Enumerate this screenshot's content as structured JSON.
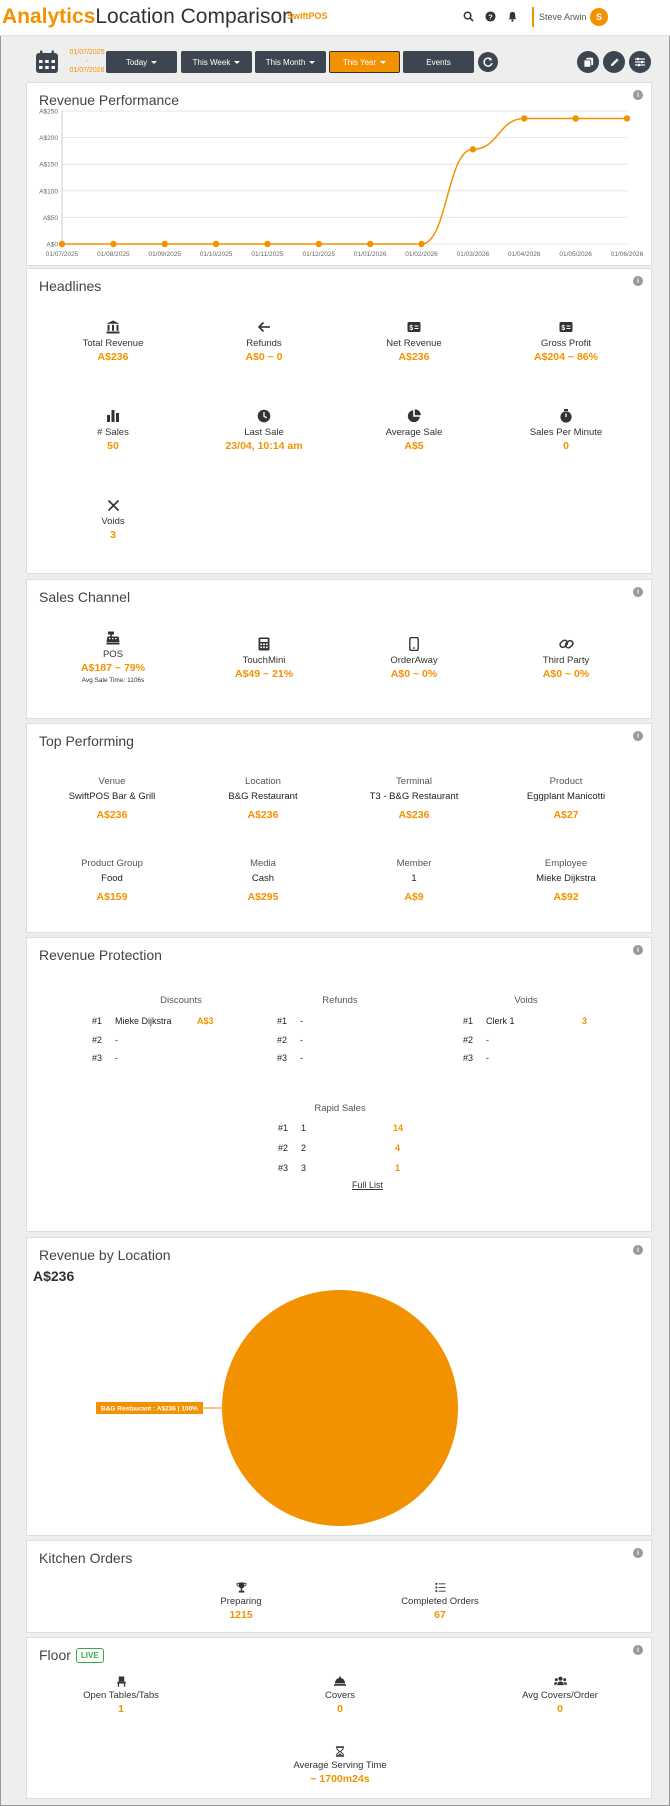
{
  "header": {
    "brand_accent": "Analytics",
    "brand_title": "Location Comparison",
    "tenant": "SwiftPOS",
    "user_name": "Steve Arwin",
    "avatar_initial": "S"
  },
  "filters": {
    "date_from": "01/07/2025",
    "date_sep": "-",
    "date_to": "01/07/2026",
    "today": "Today",
    "this_week": "This Week",
    "this_month": "This Month",
    "this_year": "This Year",
    "events": "Events"
  },
  "revenue_performance": {
    "title": "Revenue Performance",
    "chart_data": {
      "type": "line",
      "x": [
        "01/07/2025",
        "01/08/2025",
        "01/09/2025",
        "01/10/2025",
        "01/11/2025",
        "01/12/2025",
        "01/01/2026",
        "01/02/2026",
        "01/03/2026",
        "01/04/2026",
        "01/05/2026",
        "01/06/2026"
      ],
      "values": [
        0,
        0,
        0,
        0,
        0,
        0,
        0,
        0,
        178,
        236,
        236,
        236
      ],
      "y_ticks": [
        "A$0",
        "A$50",
        "A$100",
        "A$150",
        "A$200",
        "A$250"
      ],
      "ylim": [
        0,
        250
      ],
      "grid": true,
      "color": "#f39200"
    }
  },
  "headlines": {
    "title": "Headlines",
    "items": [
      {
        "label": "Total Revenue",
        "value": "A$236",
        "icon": "bank-icon"
      },
      {
        "label": "Refunds",
        "value": "A$0 ~ 0",
        "icon": "arrow-left-icon"
      },
      {
        "label": "Net Revenue",
        "value": "A$236",
        "icon": "money-icon"
      },
      {
        "label": "Gross Profit",
        "value": "A$204 ~ 86%",
        "icon": "money-icon"
      },
      {
        "label": "# Sales",
        "value": "50",
        "icon": "bar-chart-icon"
      },
      {
        "label": "Last Sale",
        "value": "23/04, 10:14 am",
        "icon": "clock-icon"
      },
      {
        "label": "Average Sale",
        "value": "A$5",
        "icon": "pie-icon"
      },
      {
        "label": "Sales Per Minute",
        "value": "0",
        "icon": "stopwatch-icon"
      },
      {
        "label": "Voids",
        "value": "3",
        "icon": "close-icon"
      }
    ]
  },
  "sales_channel": {
    "title": "Sales Channel",
    "items": [
      {
        "label": "POS",
        "value": "A$187 ~ 79%",
        "sub": "Avg Sale Time: 1106s",
        "icon": "cash-register-icon"
      },
      {
        "label": "TouchMini",
        "value": "A$49 ~ 21%",
        "sub": "",
        "icon": "calculator-icon"
      },
      {
        "label": "OrderAway",
        "value": "A$0 ~ 0%",
        "sub": "",
        "icon": "phone-icon"
      },
      {
        "label": "Third Party",
        "value": "A$0 ~ 0%",
        "sub": "",
        "icon": "link-icon"
      }
    ]
  },
  "top_performing": {
    "title": "Top Performing",
    "items": [
      {
        "label": "Venue",
        "name": "SwiftPOS Bar & Grill",
        "value": "A$236"
      },
      {
        "label": "Location",
        "name": "B&G Restaurant",
        "value": "A$236"
      },
      {
        "label": "Terminal",
        "name": "T3 - B&G Restaurant",
        "value": "A$236"
      },
      {
        "label": "Product",
        "name": "Eggplant Manicotti",
        "value": "A$27"
      },
      {
        "label": "Product Group",
        "name": "Food",
        "value": "A$159"
      },
      {
        "label": "Media",
        "name": "Cash",
        "value": "A$295"
      },
      {
        "label": "Member",
        "name": "1",
        "value": "A$9"
      },
      {
        "label": "Employee",
        "name": "Mieke Dijkstra",
        "value": "A$92"
      }
    ]
  },
  "revenue_protection": {
    "title": "Revenue Protection",
    "discounts": {
      "label": "Discounts",
      "rows": [
        {
          "rank": "#1",
          "name": "Mieke Dijkstra",
          "amount": "A$3"
        },
        {
          "rank": "#2",
          "name": "-",
          "amount": ""
        },
        {
          "rank": "#3",
          "name": "-",
          "amount": ""
        }
      ]
    },
    "refunds": {
      "label": "Refunds",
      "rows": [
        {
          "rank": "#1",
          "name": "-",
          "amount": ""
        },
        {
          "rank": "#2",
          "name": "-",
          "amount": ""
        },
        {
          "rank": "#3",
          "name": "-",
          "amount": ""
        }
      ]
    },
    "voids": {
      "label": "Voids",
      "rows": [
        {
          "rank": "#1",
          "name": "Clerk 1",
          "amount": "3"
        },
        {
          "rank": "#2",
          "name": "-",
          "amount": ""
        },
        {
          "rank": "#3",
          "name": "-",
          "amount": ""
        }
      ]
    },
    "rapid_sales": {
      "label": "Rapid Sales",
      "rows": [
        {
          "rank": "#1",
          "name": "1",
          "amount": "14"
        },
        {
          "rank": "#2",
          "name": "2",
          "amount": "4"
        },
        {
          "rank": "#3",
          "name": "3",
          "amount": "1"
        }
      ]
    },
    "full_list": "Full List"
  },
  "revenue_by_location": {
    "title": "Revenue by Location",
    "total": "A$236",
    "chart_data": {
      "type": "pie",
      "slices": [
        {
          "name": "B&G Restaurant",
          "value": 236,
          "percent": 100,
          "label": "B&G Restaurant : A$236 | 100%"
        }
      ],
      "color": "#f39200"
    }
  },
  "kitchen_orders": {
    "title": "Kitchen Orders",
    "items": [
      {
        "label": "Preparing",
        "value": "1215",
        "icon": "trophy-icon"
      },
      {
        "label": "Completed Orders",
        "value": "67",
        "icon": "list-icon"
      }
    ]
  },
  "floor": {
    "title": "Floor",
    "badge": "LIVE",
    "items": [
      {
        "label": "Open Tables/Tabs",
        "value": "1",
        "icon": "chair-icon"
      },
      {
        "label": "Covers",
        "value": "0",
        "icon": "cloche-icon"
      },
      {
        "label": "Avg Covers/Order",
        "value": "0",
        "icon": "users-icon"
      },
      {
        "label": "Average Serving Time",
        "value": "~ 1700m24s",
        "icon": "hourglass-icon"
      }
    ]
  },
  "info_glyph": "i"
}
